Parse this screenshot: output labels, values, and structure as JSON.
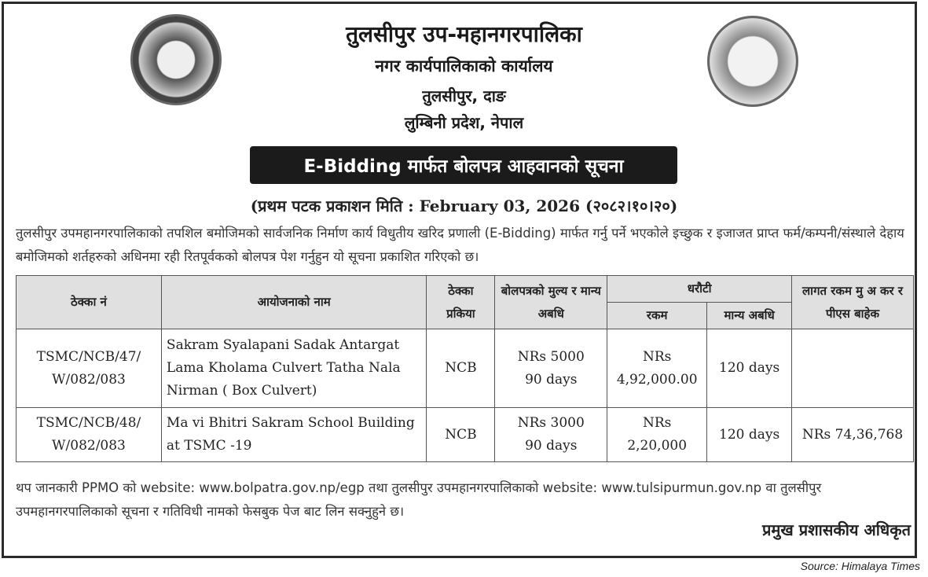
{
  "header": {
    "org": "तुलसीपुर उप-महानगरपालिका",
    "office": "नगर कार्यपालिकाको कार्यालय",
    "location": "तुलसीपुर, दाङ",
    "province": "लुम्बिनी प्रदेश, नेपाल"
  },
  "title": "E-Bidding मार्फत बोलपत्र आहवानको सूचना",
  "publication": "(प्रथम पटक प्रकाशन मिति : February 03, 2026 (२०८२।१०।२०)",
  "intro": "तुलसीपुर उपमहानगरपालिकाको तपशिल बमोजिमको सार्वजनिक निर्माण कार्य विधुतीय खरिद प्रणाली (E-Bidding) मार्फत गर्नु पर्ने भएकोले  इच्छुक र इजाजत प्राप्त फर्म/कम्पनी/संस्थाले देहाय बमोजिमको शर्तहरुको अधिनमा रही रितपूर्वकको बोलपत्र पेश गर्नुहुन यो सूचना प्रकाशित गरिएको छ।",
  "table": {
    "headers": {
      "contract_no": "ठेक्का नं",
      "project": "आयोजनाको नाम",
      "process": "ठेक्का प्रकिया",
      "bid_fee": "बोलपत्रको मुल्य र मान्य अबधि",
      "security": "धरौटी",
      "amount": "रकम",
      "validity": "मान्य अबधि",
      "cost": "लागत रकम मु अ कर र पीएस बाहेक"
    },
    "rows": [
      {
        "contract_no": "TSMC/NCB/47/ W/082/083",
        "project": "Sakram Syalapani Sadak Antargat Lama Kholama Culvert Tatha Nala Nirman ( Box Culvert)",
        "process": "NCB",
        "bid_fee": "NRs 5000",
        "bid_validity": "90 days",
        "amount_label": "NRs",
        "amount": "4,92,000.00",
        "validity": "120  days",
        "cost": ""
      },
      {
        "contract_no": "TSMC/NCB/48/ W/082/083",
        "project": "Ma vi Bhitri Sakram School Building at TSMC -19",
        "process": "NCB",
        "bid_fee": "NRs 3000",
        "bid_validity": "90 days",
        "amount_label": "NRs",
        "amount": "2,20,000",
        "validity": "120  days",
        "cost": "NRs 74,36,768"
      }
    ]
  },
  "footer_note": "थप जानकारी PPMO को website: www.bolpatra.gov.np/egp तथा तुलसीपुर उपमहानगरपालिकाको website: www.tulsipurmun.gov.np वा तुलसीपुर उपमहानगरपालिकाको सूचना र गतिविधी नामको फेसबुक पेज बाट लिन सक्नुहुने छ।",
  "signature": "प्रमुख प्रशासकीय अधिकृत",
  "source": "Source: Himalaya Times"
}
